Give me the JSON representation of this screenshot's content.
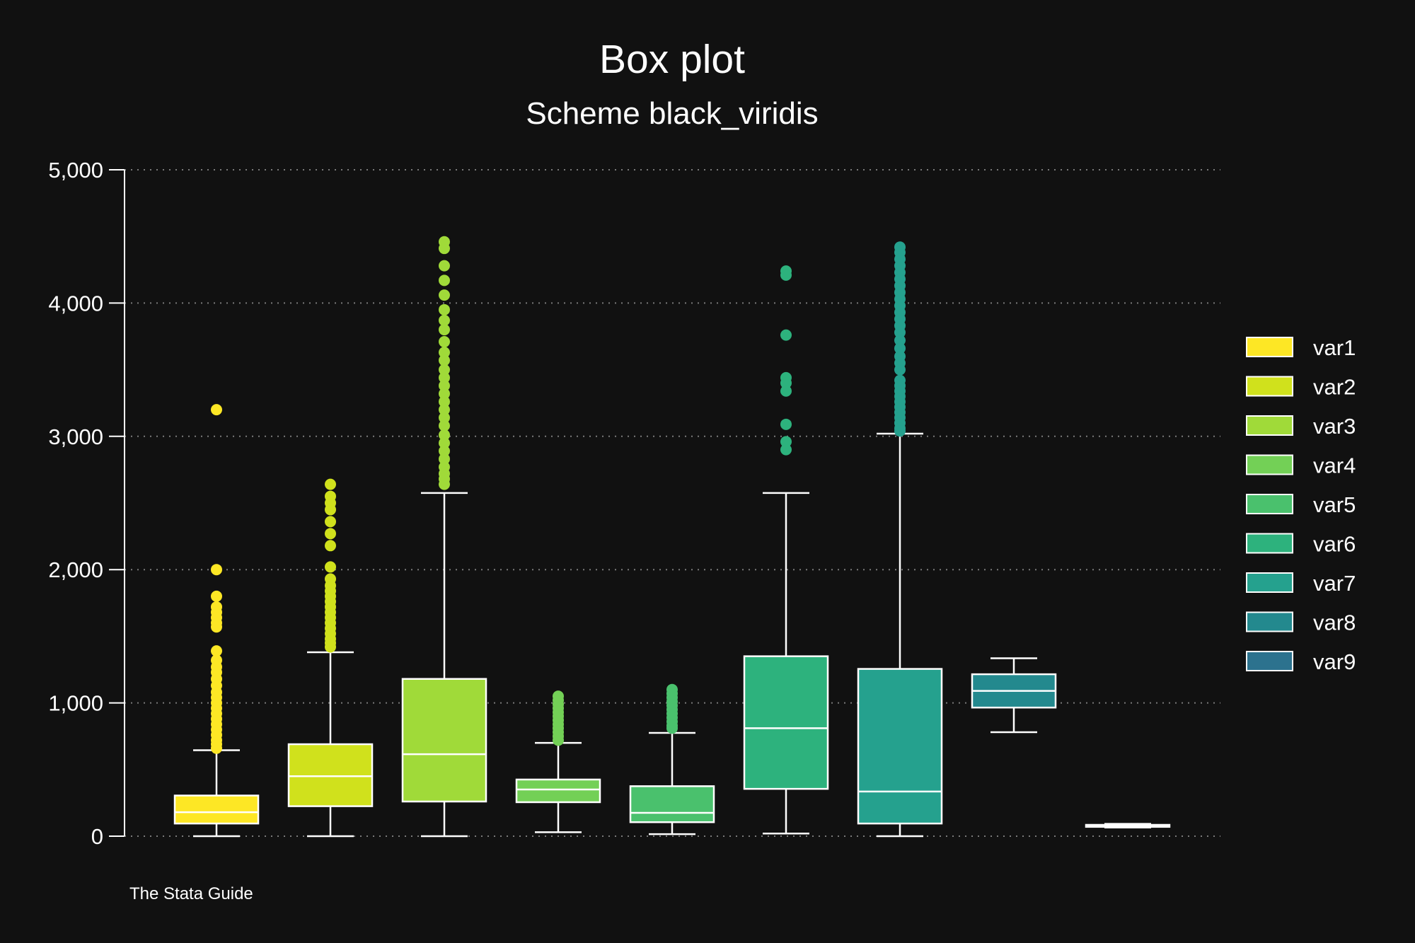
{
  "chart_data": {
    "type": "box",
    "title": "Box plot",
    "subtitle": "Scheme black_viridis",
    "note": "The Stata Guide",
    "ylim": [
      0,
      5000
    ],
    "yticks": [
      0,
      1000,
      2000,
      3000,
      4000,
      5000
    ],
    "ytick_labels": [
      "0",
      "1,000",
      "2,000",
      "3,000",
      "4,000",
      "5,000"
    ],
    "grid": true,
    "legend_position": "right",
    "series": [
      {
        "name": "var1",
        "color": "#fde725",
        "whisker_low": 0,
        "q1": 95,
        "median": 180,
        "q3": 305,
        "whisker_high": 645,
        "outliers": [
          3200,
          2000,
          1800,
          1720,
          1680,
          1640,
          1600,
          1570,
          1390,
          1320,
          1270,
          1230,
          1180,
          1130,
          1080,
          1040,
          1000,
          960,
          920,
          880,
          840,
          800,
          760,
          720,
          690,
          660
        ]
      },
      {
        "name": "var2",
        "color": "#d0e11c",
        "whisker_low": 0,
        "q1": 225,
        "median": 450,
        "q3": 690,
        "whisker_high": 1380,
        "outliers": [
          2640,
          2550,
          2500,
          2450,
          2360,
          2270,
          2180,
          2020,
          1930,
          1880,
          1840,
          1800,
          1760,
          1720,
          1680,
          1640,
          1600,
          1560,
          1520,
          1480,
          1450,
          1420
        ]
      },
      {
        "name": "var3",
        "color": "#a0da39",
        "whisker_low": 0,
        "q1": 260,
        "median": 615,
        "q3": 1180,
        "whisker_high": 2575,
        "outliers": [
          4460,
          4410,
          4280,
          4170,
          4060,
          3950,
          3870,
          3800,
          3710,
          3630,
          3570,
          3500,
          3440,
          3380,
          3320,
          3260,
          3200,
          3140,
          3080,
          3010,
          2950,
          2890,
          2830,
          2770,
          2720,
          2680,
          2640
        ]
      },
      {
        "name": "var4",
        "color": "#73d056",
        "whisker_low": 30,
        "q1": 255,
        "median": 350,
        "q3": 425,
        "whisker_high": 700,
        "outliers": [
          1050,
          1020,
          990,
          960,
          930,
          900,
          870,
          840,
          810,
          780,
          750,
          720
        ]
      },
      {
        "name": "var5",
        "color": "#4ac16d",
        "whisker_low": 15,
        "q1": 105,
        "median": 175,
        "q3": 375,
        "whisker_high": 775,
        "outliers": [
          1100,
          1070,
          1040,
          1010,
          980,
          950,
          920,
          890,
          860,
          830,
          810
        ]
      },
      {
        "name": "var6",
        "color": "#2db27d",
        "whisker_low": 20,
        "q1": 355,
        "median": 810,
        "q3": 1350,
        "whisker_high": 2575,
        "outliers": [
          4240,
          4210,
          3760,
          3440,
          3400,
          3340,
          3090,
          2960,
          2900
        ]
      },
      {
        "name": "var7",
        "color": "#25a18e",
        "whisker_low": 0,
        "q1": 95,
        "median": 335,
        "q3": 1255,
        "whisker_high": 3020,
        "outliers": [
          4420,
          4380,
          4330,
          4280,
          4230,
          4180,
          4130,
          4080,
          4030,
          3980,
          3930,
          3880,
          3830,
          3780,
          3720,
          3660,
          3600,
          3550,
          3500,
          3420,
          3380,
          3340,
          3300,
          3260,
          3220,
          3180,
          3140,
          3100,
          3060,
          3040
        ]
      },
      {
        "name": "var8",
        "color": "#23898e",
        "whisker_low": 780,
        "q1": 965,
        "median": 1090,
        "q3": 1215,
        "whisker_high": 1335,
        "outliers": []
      },
      {
        "name": "var9",
        "color": "#2c728e",
        "whisker_low": 65,
        "q1": 70,
        "median": 78,
        "q3": 85,
        "whisker_high": 92,
        "outliers": []
      }
    ]
  }
}
